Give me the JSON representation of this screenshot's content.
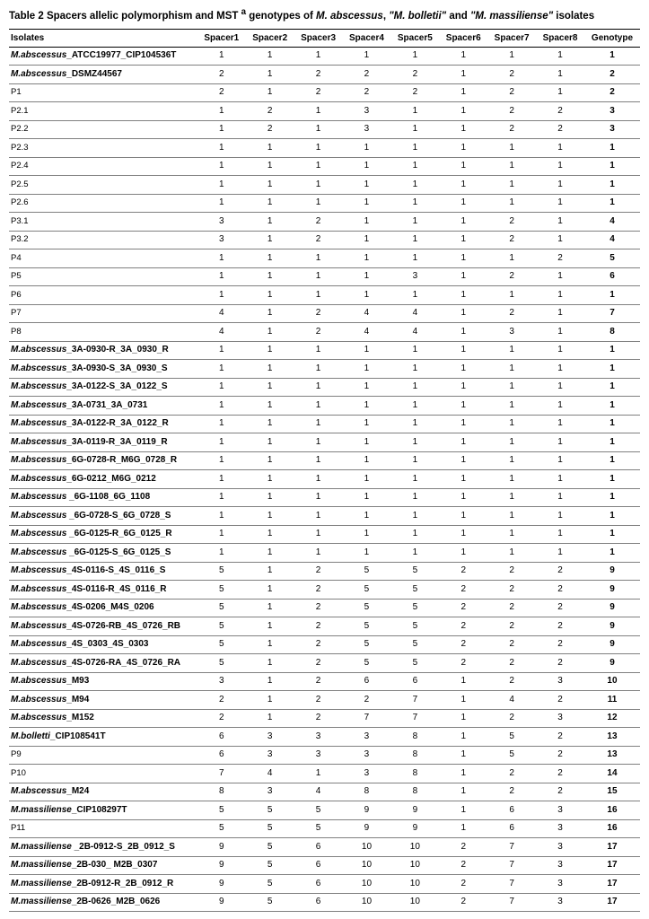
{
  "table": {
    "title_prefix": "Table 2 Spacers allelic polymorphism and MST ",
    "title_sup": "a",
    "title_mid": " genotypes of ",
    "title_sp1": "M. abscessus",
    "title_sep1": ", ",
    "title_sp2": "\"M. bolletii\"",
    "title_sep2": " and ",
    "title_sp3": "\"M. massiliense\"",
    "title_suffix": " isolates",
    "columns": [
      "Isolates",
      "Spacer1",
      "Spacer2",
      "Spacer3",
      "Spacer4",
      "Spacer5",
      "Spacer6",
      "Spacer7",
      "Spacer8",
      "Genotype"
    ],
    "border_color": "#808080",
    "header_border_color": "#000000",
    "rows": [
      {
        "species": "M.abscessus",
        "strain": "_ATCC19977_CIP104536T",
        "plain": false,
        "v": [
          1,
          1,
          1,
          1,
          1,
          1,
          1,
          1
        ],
        "g": 1
      },
      {
        "species": "M.abscessus",
        "strain": "_DSMZ44567",
        "plain": false,
        "v": [
          2,
          1,
          2,
          2,
          2,
          1,
          2,
          1
        ],
        "g": 2
      },
      {
        "label": "P1",
        "plain": true,
        "v": [
          2,
          1,
          2,
          2,
          2,
          1,
          2,
          1
        ],
        "g": 2
      },
      {
        "label": "P2.1",
        "plain": true,
        "v": [
          1,
          2,
          1,
          3,
          1,
          1,
          2,
          2
        ],
        "g": 3
      },
      {
        "label": "P2.2",
        "plain": true,
        "v": [
          1,
          2,
          1,
          3,
          1,
          1,
          2,
          2
        ],
        "g": 3
      },
      {
        "label": "P2.3",
        "plain": true,
        "v": [
          1,
          1,
          1,
          1,
          1,
          1,
          1,
          1
        ],
        "g": 1
      },
      {
        "label": "P2.4",
        "plain": true,
        "v": [
          1,
          1,
          1,
          1,
          1,
          1,
          1,
          1
        ],
        "g": 1
      },
      {
        "label": "P2.5",
        "plain": true,
        "v": [
          1,
          1,
          1,
          1,
          1,
          1,
          1,
          1
        ],
        "g": 1
      },
      {
        "label": "P2.6",
        "plain": true,
        "v": [
          1,
          1,
          1,
          1,
          1,
          1,
          1,
          1
        ],
        "g": 1
      },
      {
        "label": "P3.1",
        "plain": true,
        "v": [
          3,
          1,
          2,
          1,
          1,
          1,
          2,
          1
        ],
        "g": 4
      },
      {
        "label": "P3.2",
        "plain": true,
        "v": [
          3,
          1,
          2,
          1,
          1,
          1,
          2,
          1
        ],
        "g": 4
      },
      {
        "label": "P4",
        "plain": true,
        "v": [
          1,
          1,
          1,
          1,
          1,
          1,
          1,
          2
        ],
        "g": 5
      },
      {
        "label": "P5",
        "plain": true,
        "v": [
          1,
          1,
          1,
          1,
          3,
          1,
          2,
          1
        ],
        "g": 6
      },
      {
        "label": "P6",
        "plain": true,
        "v": [
          1,
          1,
          1,
          1,
          1,
          1,
          1,
          1
        ],
        "g": 1
      },
      {
        "label": "P7",
        "plain": true,
        "v": [
          4,
          1,
          2,
          4,
          4,
          1,
          2,
          1
        ],
        "g": 7
      },
      {
        "label": "P8",
        "plain": true,
        "v": [
          4,
          1,
          2,
          4,
          4,
          1,
          3,
          1
        ],
        "g": 8
      },
      {
        "species": "M.abscessus",
        "strain": "_3A-0930-R_3A_0930_R",
        "plain": false,
        "v": [
          1,
          1,
          1,
          1,
          1,
          1,
          1,
          1
        ],
        "g": 1
      },
      {
        "species": "M.abscessus",
        "strain": "_3A-0930-S_3A_0930_S",
        "plain": false,
        "v": [
          1,
          1,
          1,
          1,
          1,
          1,
          1,
          1
        ],
        "g": 1
      },
      {
        "species": "M.abscessus",
        "strain": "_3A-0122-S_3A_0122_S",
        "plain": false,
        "v": [
          1,
          1,
          1,
          1,
          1,
          1,
          1,
          1
        ],
        "g": 1
      },
      {
        "species": "M.abscessus",
        "strain": "_3A-0731_3A_0731",
        "plain": false,
        "v": [
          1,
          1,
          1,
          1,
          1,
          1,
          1,
          1
        ],
        "g": 1
      },
      {
        "species": "M.abscessus",
        "strain": "_3A-0122-R_3A_0122_R",
        "plain": false,
        "v": [
          1,
          1,
          1,
          1,
          1,
          1,
          1,
          1
        ],
        "g": 1
      },
      {
        "species": "M.abscessus",
        "strain": "_3A-0119-R_3A_0119_R",
        "plain": false,
        "v": [
          1,
          1,
          1,
          1,
          1,
          1,
          1,
          1
        ],
        "g": 1
      },
      {
        "species": "M.abscessus",
        "strain": "_6G-0728-R_M6G_0728_R",
        "plain": false,
        "v": [
          1,
          1,
          1,
          1,
          1,
          1,
          1,
          1
        ],
        "g": 1
      },
      {
        "species": "M.abscessus",
        "strain": "_6G-0212_M6G_0212",
        "plain": false,
        "v": [
          1,
          1,
          1,
          1,
          1,
          1,
          1,
          1
        ],
        "g": 1
      },
      {
        "species": "M.abscessus",
        "strain": " _6G-1108_6G_1108",
        "plain": false,
        "v": [
          1,
          1,
          1,
          1,
          1,
          1,
          1,
          1
        ],
        "g": 1
      },
      {
        "species": "M.abscessus",
        "strain": " _6G-0728-S_6G_0728_S",
        "plain": false,
        "v": [
          1,
          1,
          1,
          1,
          1,
          1,
          1,
          1
        ],
        "g": 1
      },
      {
        "species": "M.abscessus",
        "strain": " _6G-0125-R_6G_0125_R",
        "plain": false,
        "v": [
          1,
          1,
          1,
          1,
          1,
          1,
          1,
          1
        ],
        "g": 1
      },
      {
        "species": "M.abscessus",
        "strain": " _6G-0125-S_6G_0125_S",
        "plain": false,
        "v": [
          1,
          1,
          1,
          1,
          1,
          1,
          1,
          1
        ],
        "g": 1
      },
      {
        "species": "M.abscessus",
        "strain": "_4S-0116-S_4S_0116_S",
        "plain": false,
        "v": [
          5,
          1,
          2,
          5,
          5,
          2,
          2,
          2
        ],
        "g": 9
      },
      {
        "species": "M.abscessus",
        "strain": "_4S-0116-R_4S_0116_R",
        "plain": false,
        "v": [
          5,
          1,
          2,
          5,
          5,
          2,
          2,
          2
        ],
        "g": 9
      },
      {
        "species": "M.abscessus",
        "strain": "_4S-0206_M4S_0206",
        "plain": false,
        "v": [
          5,
          1,
          2,
          5,
          5,
          2,
          2,
          2
        ],
        "g": 9
      },
      {
        "species": "M.abscessus",
        "strain": "_4S-0726-RB_4S_0726_RB",
        "plain": false,
        "v": [
          5,
          1,
          2,
          5,
          5,
          2,
          2,
          2
        ],
        "g": 9
      },
      {
        "species": "M.abscessus",
        "strain": "_4S_0303_4S_0303",
        "plain": false,
        "v": [
          5,
          1,
          2,
          5,
          5,
          2,
          2,
          2
        ],
        "g": 9
      },
      {
        "species": "M.abscessus",
        "strain": "_4S-0726-RA_4S_0726_RA",
        "plain": false,
        "v": [
          5,
          1,
          2,
          5,
          5,
          2,
          2,
          2
        ],
        "g": 9
      },
      {
        "species": "M.abscessus",
        "strain": "_M93",
        "plain": false,
        "v": [
          3,
          1,
          2,
          6,
          6,
          1,
          2,
          3
        ],
        "g": 10
      },
      {
        "species": "M.abscessus",
        "strain": "_M94",
        "plain": false,
        "v": [
          2,
          1,
          2,
          2,
          7,
          1,
          4,
          2
        ],
        "g": 11
      },
      {
        "species": "M.abscessus",
        "strain": "_M152",
        "plain": false,
        "v": [
          2,
          1,
          2,
          7,
          7,
          1,
          2,
          3
        ],
        "g": 12
      },
      {
        "species": "M.bolletti",
        "strain": "_CIP108541T",
        "plain": false,
        "v": [
          6,
          3,
          3,
          3,
          8,
          1,
          5,
          2
        ],
        "g": 13
      },
      {
        "label": "P9",
        "plain": true,
        "v": [
          6,
          3,
          3,
          3,
          8,
          1,
          5,
          2
        ],
        "g": 13
      },
      {
        "label": "P10",
        "plain": true,
        "v": [
          7,
          4,
          1,
          3,
          8,
          1,
          2,
          2
        ],
        "g": 14
      },
      {
        "species": "M.abscessus",
        "strain": "_M24",
        "plain": false,
        "v": [
          8,
          3,
          4,
          8,
          8,
          1,
          2,
          2
        ],
        "g": 15
      },
      {
        "species": "M.massiliense",
        "strain": "_CIP108297T",
        "plain": false,
        "v": [
          5,
          5,
          5,
          9,
          9,
          1,
          6,
          3
        ],
        "g": 16
      },
      {
        "label": "P11",
        "plain": true,
        "v": [
          5,
          5,
          5,
          9,
          9,
          1,
          6,
          3
        ],
        "g": 16
      },
      {
        "species": "M.massiliense",
        "strain": " _2B-0912-S_2B_0912_S",
        "plain": false,
        "v": [
          9,
          5,
          6,
          10,
          10,
          2,
          7,
          3
        ],
        "g": 17
      },
      {
        "species": "M.massiliense",
        "strain": "_2B-030_ M2B_0307",
        "plain": false,
        "v": [
          9,
          5,
          6,
          10,
          10,
          2,
          7,
          3
        ],
        "g": 17
      },
      {
        "species": "M.massiliense",
        "strain": "_2B-0912-R_2B_0912_R",
        "plain": false,
        "v": [
          9,
          5,
          6,
          10,
          10,
          2,
          7,
          3
        ],
        "g": 17
      },
      {
        "species": "M.massiliense",
        "strain": "_2B-0626_M2B_0626",
        "plain": false,
        "v": [
          9,
          5,
          6,
          10,
          10,
          2,
          7,
          3
        ],
        "g": 17
      }
    ]
  }
}
